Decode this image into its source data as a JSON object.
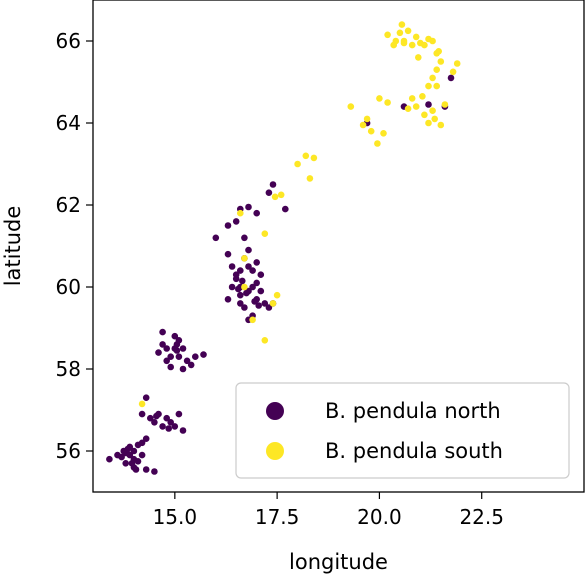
{
  "chart_data": {
    "type": "scatter",
    "title": "",
    "xlabel": "longitude",
    "ylabel": "latitude",
    "xlim": [
      13.0,
      25.0
    ],
    "ylim": [
      55.0,
      67.0
    ],
    "xticks": [
      15.0,
      17.5,
      20.0,
      22.5
    ],
    "xtick_labels": [
      "15.0",
      "17.5",
      "20.0",
      "22.5"
    ],
    "yticks": [
      56,
      58,
      60,
      62,
      64,
      66
    ],
    "ytick_labels": [
      "56",
      "58",
      "60",
      "62",
      "64",
      "66"
    ],
    "grid": false,
    "legend_position": "lower-right",
    "colors": {
      "north": "#440154",
      "south": "#fde725",
      "axis": "#000000"
    },
    "series": [
      {
        "name": "B. pendula north",
        "key": "north",
        "points": [
          [
            13.4,
            55.8
          ],
          [
            13.6,
            55.9
          ],
          [
            13.7,
            55.85
          ],
          [
            13.8,
            55.7
          ],
          [
            13.8,
            55.95
          ],
          [
            13.9,
            56.1
          ],
          [
            13.9,
            55.9
          ],
          [
            14.0,
            55.6
          ],
          [
            14.0,
            55.8
          ],
          [
            14.0,
            56.0
          ],
          [
            14.1,
            56.15
          ],
          [
            14.1,
            55.75
          ],
          [
            14.2,
            56.2
          ],
          [
            14.2,
            55.9
          ],
          [
            14.3,
            56.3
          ],
          [
            13.85,
            56.05
          ],
          [
            13.95,
            55.7
          ],
          [
            14.05,
            55.55
          ],
          [
            13.75,
            56.0
          ],
          [
            14.3,
            55.55
          ],
          [
            14.5,
            55.5
          ],
          [
            14.2,
            56.9
          ],
          [
            14.3,
            57.3
          ],
          [
            14.4,
            56.8
          ],
          [
            14.5,
            56.7
          ],
          [
            14.6,
            56.9
          ],
          [
            14.7,
            56.6
          ],
          [
            14.8,
            56.8
          ],
          [
            14.9,
            56.7
          ],
          [
            15.0,
            56.6
          ],
          [
            15.1,
            56.9
          ],
          [
            15.2,
            56.5
          ],
          [
            14.55,
            56.85
          ],
          [
            14.85,
            56.55
          ],
          [
            14.6,
            58.4
          ],
          [
            14.7,
            58.6
          ],
          [
            14.8,
            58.2
          ],
          [
            14.8,
            58.5
          ],
          [
            14.7,
            58.9
          ],
          [
            14.9,
            58.3
          ],
          [
            15.0,
            58.5
          ],
          [
            15.0,
            58.8
          ],
          [
            15.05,
            58.6
          ],
          [
            15.1,
            58.7
          ],
          [
            15.1,
            58.3
          ],
          [
            15.2,
            58.5
          ],
          [
            15.3,
            58.2
          ],
          [
            15.4,
            58.1
          ],
          [
            15.5,
            58.3
          ],
          [
            15.7,
            58.35
          ],
          [
            14.9,
            58.05
          ],
          [
            15.2,
            58.0
          ],
          [
            15.05,
            58.45
          ],
          [
            16.0,
            61.2
          ],
          [
            16.3,
            61.5
          ],
          [
            16.5,
            61.6
          ],
          [
            16.3,
            60.8
          ],
          [
            16.4,
            60.5
          ],
          [
            16.5,
            60.2
          ],
          [
            16.6,
            60.0
          ],
          [
            16.6,
            59.8
          ],
          [
            16.7,
            59.5
          ],
          [
            16.8,
            59.2
          ],
          [
            16.9,
            59.3
          ],
          [
            16.9,
            60.4
          ],
          [
            17.0,
            60.1
          ],
          [
            17.0,
            59.7
          ],
          [
            17.1,
            59.9
          ],
          [
            17.1,
            60.3
          ],
          [
            17.0,
            60.6
          ],
          [
            16.8,
            60.9
          ],
          [
            16.7,
            61.2
          ],
          [
            16.5,
            60.3
          ],
          [
            16.4,
            60.0
          ],
          [
            16.3,
            59.7
          ],
          [
            16.6,
            59.6
          ],
          [
            16.8,
            59.9
          ],
          [
            16.9,
            60.0
          ],
          [
            17.2,
            59.6
          ],
          [
            17.3,
            59.5
          ],
          [
            17.4,
            59.6
          ],
          [
            16.7,
            60.7
          ],
          [
            16.8,
            60.5
          ],
          [
            16.6,
            60.4
          ],
          [
            16.55,
            59.95
          ],
          [
            16.75,
            59.85
          ],
          [
            16.95,
            59.65
          ],
          [
            17.05,
            59.55
          ],
          [
            16.65,
            60.15
          ],
          [
            16.6,
            61.9
          ],
          [
            17.0,
            61.8
          ],
          [
            17.4,
            62.5
          ],
          [
            17.3,
            62.3
          ],
          [
            17.7,
            61.9
          ],
          [
            16.8,
            61.95
          ],
          [
            19.7,
            64.0
          ],
          [
            20.6,
            64.4
          ],
          [
            21.2,
            64.45
          ],
          [
            21.6,
            64.4
          ],
          [
            21.75,
            65.1
          ]
        ]
      },
      {
        "name": "B. pendula south",
        "key": "south",
        "points": [
          [
            14.2,
            57.15
          ],
          [
            16.7,
            60.7
          ],
          [
            16.7,
            60.0
          ],
          [
            16.9,
            59.2
          ],
          [
            17.4,
            59.6
          ],
          [
            17.5,
            59.8
          ],
          [
            16.6,
            61.8
          ],
          [
            17.2,
            61.3
          ],
          [
            17.45,
            62.2
          ],
          [
            17.6,
            62.25
          ],
          [
            17.2,
            58.7
          ],
          [
            18.0,
            63.0
          ],
          [
            18.2,
            63.2
          ],
          [
            18.4,
            63.15
          ],
          [
            18.3,
            62.65
          ],
          [
            19.3,
            64.4
          ],
          [
            19.6,
            63.95
          ],
          [
            19.7,
            64.1
          ],
          [
            19.8,
            63.8
          ],
          [
            19.95,
            63.5
          ],
          [
            20.1,
            63.75
          ],
          [
            20.0,
            64.6
          ],
          [
            20.2,
            64.5
          ],
          [
            20.2,
            66.15
          ],
          [
            20.4,
            66.0
          ],
          [
            20.5,
            66.2
          ],
          [
            20.6,
            66.0
          ],
          [
            20.7,
            66.25
          ],
          [
            20.8,
            65.9
          ],
          [
            20.9,
            66.1
          ],
          [
            21.0,
            65.95
          ],
          [
            21.1,
            65.9
          ],
          [
            21.2,
            66.05
          ],
          [
            21.3,
            66.0
          ],
          [
            21.4,
            65.7
          ],
          [
            21.5,
            65.5
          ],
          [
            21.4,
            65.3
          ],
          [
            21.3,
            65.1
          ],
          [
            21.2,
            64.9
          ],
          [
            21.4,
            64.9
          ],
          [
            20.8,
            64.6
          ],
          [
            20.7,
            64.35
          ],
          [
            20.9,
            64.4
          ],
          [
            21.1,
            64.2
          ],
          [
            21.3,
            64.3
          ],
          [
            21.2,
            64.0
          ],
          [
            21.5,
            63.95
          ],
          [
            21.6,
            64.45
          ],
          [
            21.8,
            65.25
          ],
          [
            21.9,
            65.45
          ],
          [
            21.45,
            65.75
          ],
          [
            20.95,
            65.6
          ],
          [
            20.55,
            66.4
          ],
          [
            20.35,
            65.9
          ],
          [
            21.05,
            64.65
          ],
          [
            20.6,
            65.95
          ],
          [
            21.35,
            64.1
          ]
        ]
      }
    ]
  }
}
